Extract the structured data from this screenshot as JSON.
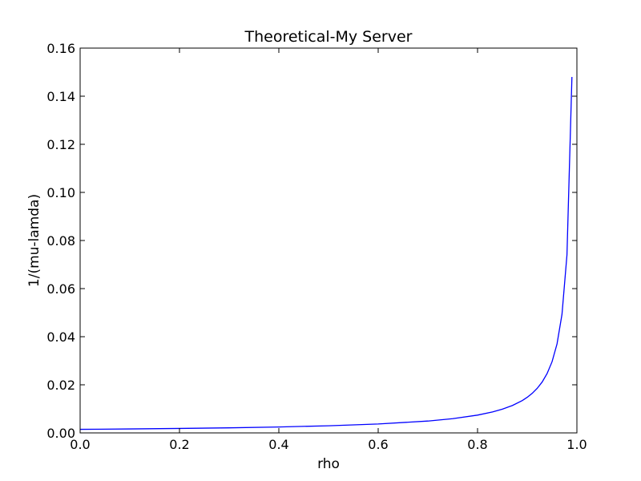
{
  "chart_data": {
    "type": "line",
    "title": "Theoretical-My Server",
    "xlabel": "rho",
    "ylabel": "1/(mu-lamda)",
    "xlim": [
      0.0,
      1.0
    ],
    "ylim": [
      0.0,
      0.16
    ],
    "xticks": [
      "0.0",
      "0.2",
      "0.4",
      "0.6",
      "0.8",
      "1.0"
    ],
    "yticks": [
      "0.00",
      "0.02",
      "0.04",
      "0.06",
      "0.08",
      "0.10",
      "0.12",
      "0.14",
      "0.16"
    ],
    "grid": false,
    "line_color": "#0000ff",
    "series": [
      {
        "x": [
          0.0,
          0.1,
          0.2,
          0.3,
          0.4,
          0.5,
          0.6,
          0.7,
          0.75,
          0.8,
          0.83,
          0.85,
          0.87,
          0.89,
          0.9,
          0.91,
          0.92,
          0.93,
          0.94,
          0.95,
          0.96,
          0.97,
          0.98,
          0.99
        ],
        "values": [
          0.00148,
          0.00164,
          0.00185,
          0.00211,
          0.00247,
          0.00296,
          0.0037,
          0.00493,
          0.00592,
          0.0074,
          0.0087,
          0.00987,
          0.01138,
          0.01345,
          0.0148,
          0.01644,
          0.0185,
          0.02114,
          0.02467,
          0.0296,
          0.037,
          0.04933,
          0.074,
          0.148
        ]
      }
    ]
  }
}
